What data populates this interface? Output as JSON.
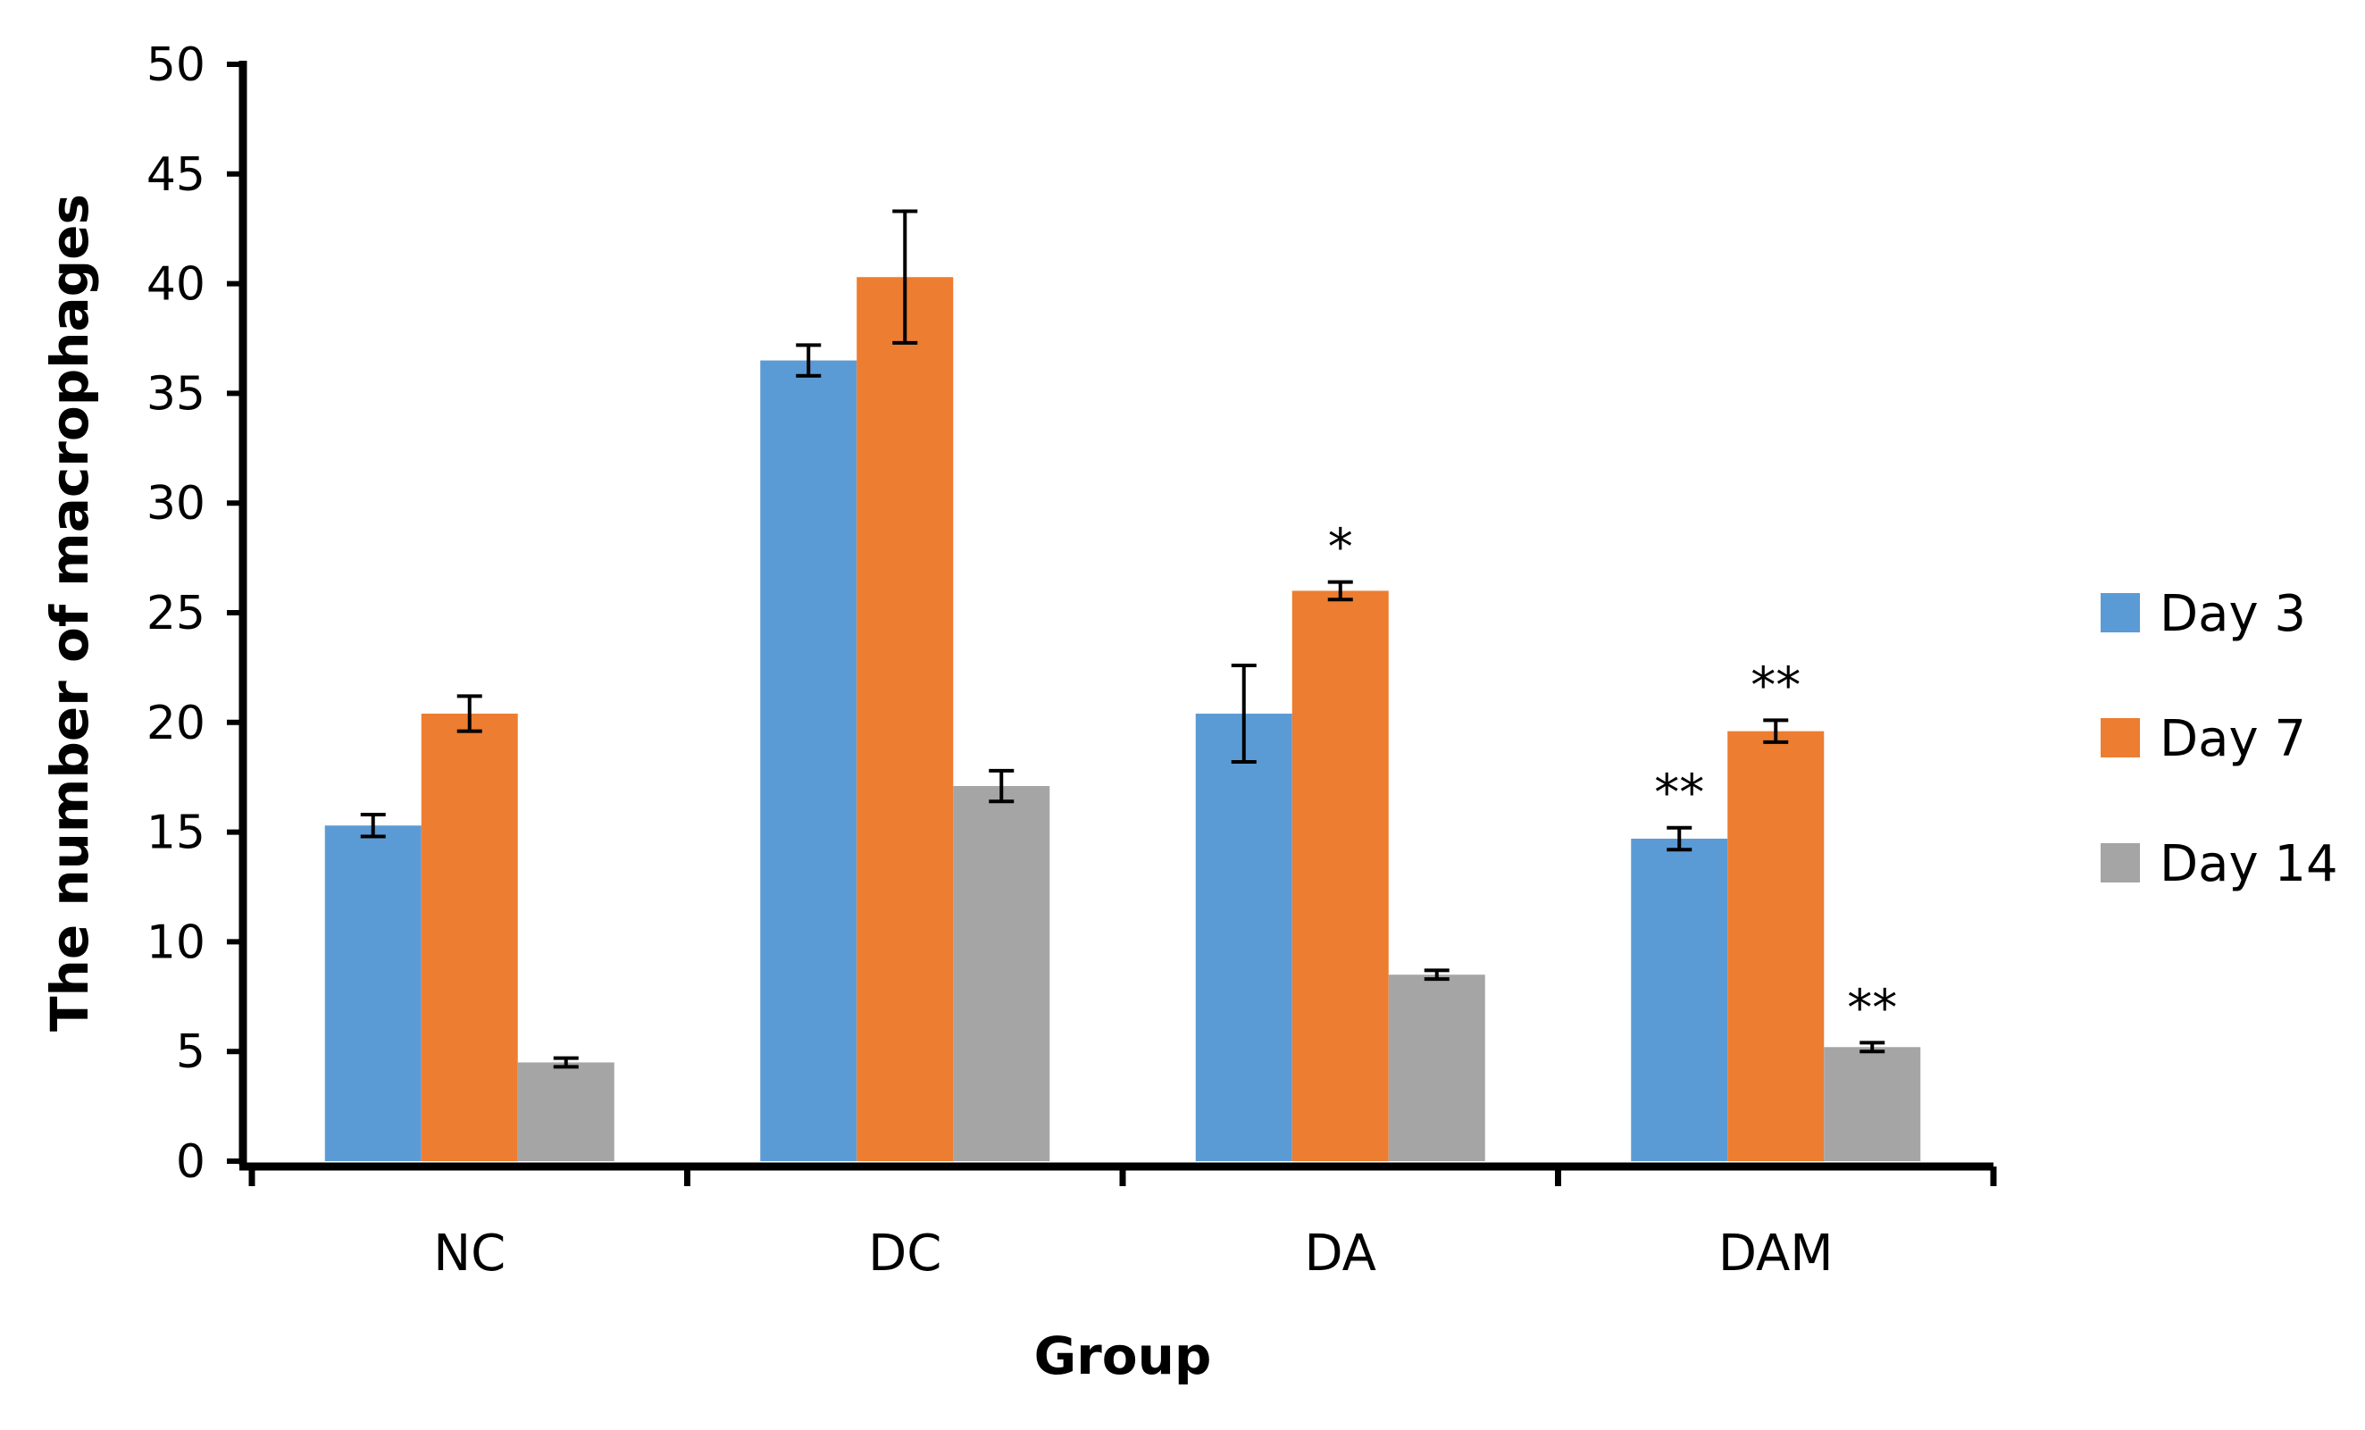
{
  "chart_data": {
    "type": "bar",
    "categories": [
      "NC",
      "DC",
      "DA",
      "DAM"
    ],
    "series": [
      {
        "name": "Day 3",
        "color": "#5B9BD5",
        "values": [
          15.3,
          36.5,
          20.4,
          14.7
        ],
        "errors": [
          0.5,
          0.7,
          2.2,
          0.5
        ],
        "significance": [
          "",
          "",
          "",
          "**"
        ]
      },
      {
        "name": "Day 7",
        "color": "#ED7D31",
        "values": [
          20.4,
          40.3,
          26.0,
          19.6
        ],
        "errors": [
          0.8,
          3.0,
          0.4,
          0.5
        ],
        "significance": [
          "",
          "",
          "*",
          "**"
        ]
      },
      {
        "name": "Day 14",
        "color": "#A5A5A5",
        "values": [
          4.5,
          17.1,
          8.5,
          5.2
        ],
        "errors": [
          0.2,
          0.7,
          0.2,
          0.2
        ],
        "significance": [
          "",
          "",
          "",
          "**"
        ]
      }
    ],
    "title": "",
    "xlabel": "Group",
    "ylabel": "The number of macrophages",
    "ylim": [
      0,
      50
    ],
    "yticks": [
      0,
      5,
      10,
      15,
      20,
      25,
      30,
      35,
      40,
      45,
      50
    ],
    "grid": false,
    "legend_position": "right"
  }
}
